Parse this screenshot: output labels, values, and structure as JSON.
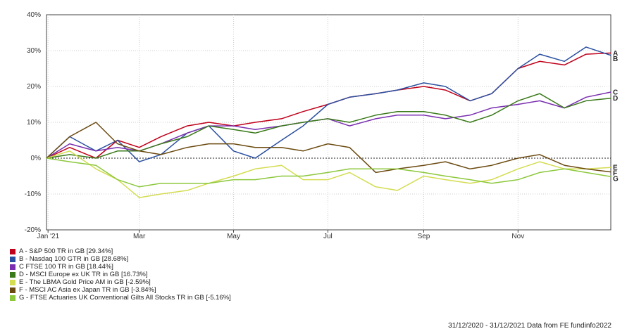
{
  "chart_data": {
    "type": "line",
    "xlim": [
      "2020-12-31",
      "2021-12-31"
    ],
    "x_ticks": [
      {
        "date": "2021-01-01",
        "label": "Jan '21"
      },
      {
        "date": "2021-03-01",
        "label": "Mar"
      },
      {
        "date": "2021-05-01",
        "label": "May"
      },
      {
        "date": "2021-07-01",
        "label": "Jul"
      },
      {
        "date": "2021-09-01",
        "label": "Sep"
      },
      {
        "date": "2021-11-01",
        "label": "Nov"
      }
    ],
    "ylim": [
      -20,
      40
    ],
    "y_ticks": [
      {
        "value": 40,
        "label": "40%"
      },
      {
        "value": 30,
        "label": "30%"
      },
      {
        "value": 20,
        "label": "20%"
      },
      {
        "value": 10,
        "label": "10%"
      },
      {
        "value": 0,
        "label": "0%"
      },
      {
        "value": -10,
        "label": "-10%"
      },
      {
        "value": -20,
        "label": "-20%"
      }
    ],
    "grid": true,
    "legend_position": "bottom-left",
    "series": [
      {
        "name": "A - S&P 500 TR in GB [29.34%]",
        "end_label": "A",
        "color": "#c0001a",
        "x": [
          "2020-12-31",
          "2021-01-15",
          "2021-02-01",
          "2021-02-15",
          "2021-03-01",
          "2021-03-15",
          "2021-04-01",
          "2021-04-15",
          "2021-05-01",
          "2021-05-15",
          "2021-06-01",
          "2021-06-15",
          "2021-07-01",
          "2021-07-15",
          "2021-08-01",
          "2021-08-15",
          "2021-09-01",
          "2021-09-15",
          "2021-10-01",
          "2021-10-15",
          "2021-11-01",
          "2021-11-15",
          "2021-12-01",
          "2021-12-15",
          "2021-12-31"
        ],
        "y": [
          0,
          3,
          0,
          5,
          3,
          6,
          9,
          10,
          9,
          10,
          11,
          13,
          15,
          17,
          18,
          19,
          20,
          19,
          16,
          18,
          25,
          27,
          26,
          29,
          29.34
        ]
      },
      {
        "name": "B - Nasdaq 100 GTR in GB [28.68%]",
        "end_label": "B",
        "color": "#2a4fa0",
        "x": [
          "2020-12-31",
          "2021-01-15",
          "2021-02-01",
          "2021-02-15",
          "2021-03-01",
          "2021-03-15",
          "2021-04-01",
          "2021-04-15",
          "2021-05-01",
          "2021-05-15",
          "2021-06-01",
          "2021-06-15",
          "2021-07-01",
          "2021-07-15",
          "2021-08-01",
          "2021-08-15",
          "2021-09-01",
          "2021-09-15",
          "2021-10-01",
          "2021-10-15",
          "2021-11-01",
          "2021-11-15",
          "2021-12-01",
          "2021-12-15",
          "2021-12-31"
        ],
        "y": [
          0,
          6,
          2,
          5,
          -1,
          1,
          7,
          9,
          2,
          0,
          5,
          9,
          15,
          17,
          18,
          19,
          21,
          20,
          16,
          18,
          25,
          29,
          27,
          31,
          28.68
        ]
      },
      {
        "name": "C   FTSE 100 TR in GB [18.44%]",
        "end_label": "C",
        "color": "#7a2fb0",
        "x": [
          "2020-12-31",
          "2021-01-15",
          "2021-02-01",
          "2021-02-15",
          "2021-03-01",
          "2021-03-15",
          "2021-04-01",
          "2021-04-15",
          "2021-05-01",
          "2021-05-15",
          "2021-06-01",
          "2021-06-15",
          "2021-07-01",
          "2021-07-15",
          "2021-08-01",
          "2021-08-15",
          "2021-09-01",
          "2021-09-15",
          "2021-10-01",
          "2021-10-15",
          "2021-11-01",
          "2021-11-15",
          "2021-12-01",
          "2021-12-15",
          "2021-12-31"
        ],
        "y": [
          0,
          4,
          2,
          3,
          2,
          4,
          7,
          9,
          9,
          8,
          9,
          10,
          11,
          9,
          11,
          12,
          12,
          11,
          12,
          14,
          15,
          16,
          14,
          17,
          18.44
        ]
      },
      {
        "name": "D - MSCI Europe ex UK TR in GB [16.73%]",
        "end_label": "D",
        "color": "#3a7a1a",
        "x": [
          "2020-12-31",
          "2021-01-15",
          "2021-02-01",
          "2021-02-15",
          "2021-03-01",
          "2021-03-15",
          "2021-04-01",
          "2021-04-15",
          "2021-05-01",
          "2021-05-15",
          "2021-06-01",
          "2021-06-15",
          "2021-07-01",
          "2021-07-15",
          "2021-08-01",
          "2021-08-15",
          "2021-09-01",
          "2021-09-15",
          "2021-10-01",
          "2021-10-15",
          "2021-11-01",
          "2021-11-15",
          "2021-12-01",
          "2021-12-15",
          "2021-12-31"
        ],
        "y": [
          0,
          1,
          0,
          2,
          2,
          4,
          6,
          9,
          8,
          7,
          9,
          10,
          11,
          10,
          12,
          13,
          13,
          12,
          10,
          12,
          16,
          18,
          14,
          16,
          16.73
        ]
      },
      {
        "name": "E - The LBMA Gold Price AM in GB [-2.59%]",
        "end_label": "E",
        "color": "#d4dc50",
        "x": [
          "2020-12-31",
          "2021-01-15",
          "2021-02-01",
          "2021-02-15",
          "2021-03-01",
          "2021-03-15",
          "2021-04-01",
          "2021-04-15",
          "2021-05-01",
          "2021-05-15",
          "2021-06-01",
          "2021-06-15",
          "2021-07-01",
          "2021-07-15",
          "2021-08-01",
          "2021-08-15",
          "2021-09-01",
          "2021-09-15",
          "2021-10-01",
          "2021-10-15",
          "2021-11-01",
          "2021-11-15",
          "2021-12-01",
          "2021-12-15",
          "2021-12-31"
        ],
        "y": [
          0,
          2,
          -3,
          -6,
          -11,
          -10,
          -9,
          -7,
          -5,
          -3,
          -2,
          -6,
          -6,
          -4,
          -8,
          -9,
          -5,
          -6,
          -7,
          -6,
          -3,
          -1,
          -3,
          -3,
          -2.59
        ]
      },
      {
        "name": "F - MSCI AC Asia ex Japan TR in GB [-3.84%]",
        "end_label": "F",
        "color": "#6b4a10",
        "x": [
          "2020-12-31",
          "2021-01-15",
          "2021-02-01",
          "2021-02-15",
          "2021-03-01",
          "2021-03-15",
          "2021-04-01",
          "2021-04-15",
          "2021-05-01",
          "2021-05-15",
          "2021-06-01",
          "2021-06-15",
          "2021-07-01",
          "2021-07-15",
          "2021-08-01",
          "2021-08-15",
          "2021-09-01",
          "2021-09-15",
          "2021-10-01",
          "2021-10-15",
          "2021-11-01",
          "2021-11-15",
          "2021-12-01",
          "2021-12-15",
          "2021-12-31"
        ],
        "y": [
          0,
          6,
          10,
          4,
          2,
          1,
          3,
          4,
          4,
          3,
          3,
          2,
          4,
          3,
          -4,
          -3,
          -2,
          -1,
          -3,
          -2,
          0,
          1,
          -2,
          -3,
          -3.84
        ]
      },
      {
        "name": "G - FTSE Actuaries UK Conventional Gilts All Stocks TR in GB [-5.16%]",
        "end_label": "G",
        "color": "#8cc83c",
        "x": [
          "2020-12-31",
          "2021-01-15",
          "2021-02-01",
          "2021-02-15",
          "2021-03-01",
          "2021-03-15",
          "2021-04-01",
          "2021-04-15",
          "2021-05-01",
          "2021-05-15",
          "2021-06-01",
          "2021-06-15",
          "2021-07-01",
          "2021-07-15",
          "2021-08-01",
          "2021-08-15",
          "2021-09-01",
          "2021-09-15",
          "2021-10-01",
          "2021-10-15",
          "2021-11-01",
          "2021-11-15",
          "2021-12-01",
          "2021-12-15",
          "2021-12-31"
        ],
        "y": [
          0,
          -1,
          -2,
          -6,
          -8,
          -7,
          -7,
          -7,
          -6,
          -6,
          -5,
          -5,
          -4,
          -3,
          -3,
          -3,
          -4,
          -5,
          -6,
          -7,
          -6,
          -4,
          -3,
          -4,
          -5.16
        ]
      }
    ]
  },
  "footer": "31/12/2020 - 31/12/2021 Data from FE fundinfo2022"
}
